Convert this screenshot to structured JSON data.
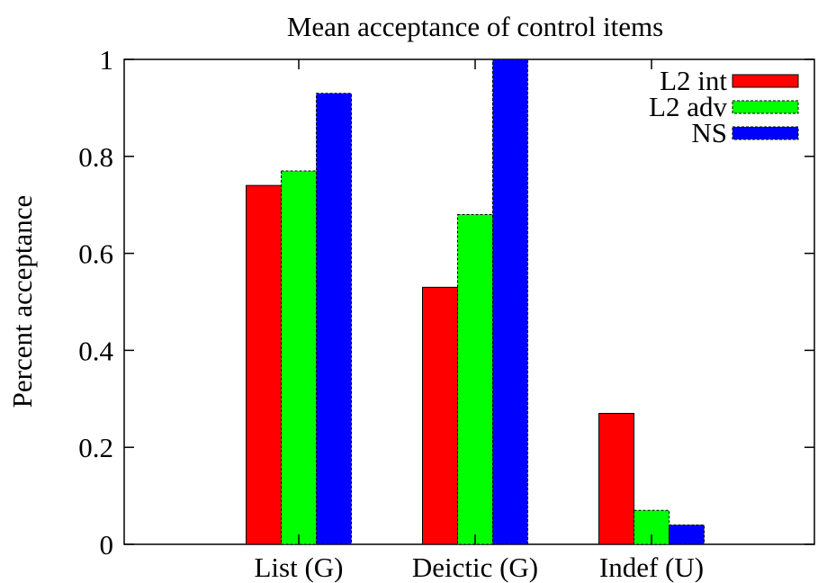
{
  "chart_data": {
    "type": "bar",
    "title": "Mean acceptance of control items",
    "xlabel": "",
    "ylabel": "Percent acceptance",
    "categories": [
      "List (G)",
      "Deictic (G)",
      "Indef (U)"
    ],
    "series": [
      {
        "name": "L2 int",
        "values": [
          0.74,
          0.53,
          0.27
        ],
        "color": "#ff0000"
      },
      {
        "name": "L2 adv",
        "values": [
          0.77,
          0.68,
          0.07
        ],
        "color": "#00ff00"
      },
      {
        "name": "NS",
        "values": [
          0.93,
          1.0,
          0.04
        ],
        "color": "#0000ff"
      }
    ],
    "ylim": [
      0,
      1
    ],
    "yticks": [
      0,
      0.2,
      0.4,
      0.6,
      0.8,
      1
    ],
    "ytick_labels": [
      "0",
      "0.2",
      "0.4",
      "0.6",
      "0.8",
      "1"
    ],
    "grid": false,
    "legend_position": "top-right"
  }
}
